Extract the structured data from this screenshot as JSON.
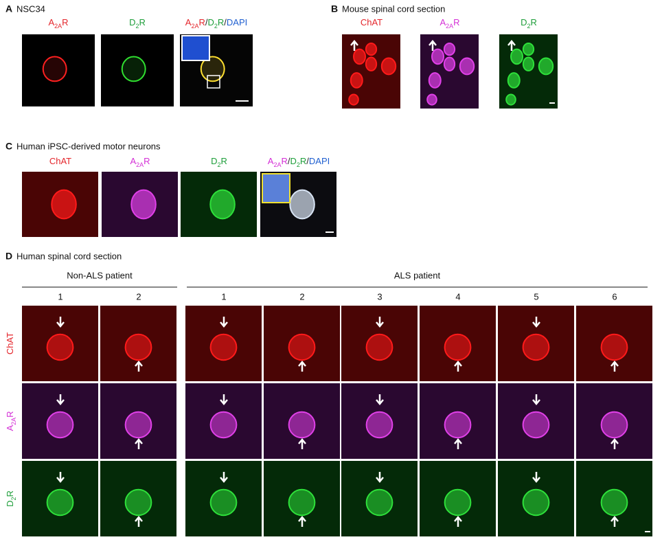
{
  "panels": [
    {
      "letter": "A",
      "title": "NSC34",
      "labels": [
        [
          {
            "text": "A",
            "color": "#e4252b"
          },
          {
            "text": "2A",
            "color": "#e4252b",
            "sub": true
          },
          {
            "text": "R",
            "color": "#e4252b"
          }
        ],
        [
          {
            "text": "D",
            "color": "#1e9e3a"
          },
          {
            "text": "2",
            "color": "#1e9e3a",
            "sub": true
          },
          {
            "text": "R",
            "color": "#1e9e3a"
          }
        ],
        [
          {
            "text": "A",
            "color": "#e4252b"
          },
          {
            "text": "2A",
            "color": "#e4252b",
            "sub": true
          },
          {
            "text": "R",
            "color": "#e4252b"
          },
          {
            "text": "/",
            "color": "#222222"
          },
          {
            "text": "D",
            "color": "#1e9e3a"
          },
          {
            "text": "2",
            "color": "#1e9e3a",
            "sub": true
          },
          {
            "text": "R",
            "color": "#1e9e3a"
          },
          {
            "text": "/",
            "color": "#222222"
          },
          {
            "text": "DAPI",
            "color": "#1f5fd0"
          }
        ]
      ]
    },
    {
      "letter": "B",
      "title": "Mouse spinal cord section",
      "labels": [
        [
          {
            "text": "ChAT",
            "color": "#e4252b"
          }
        ],
        [
          {
            "text": "A",
            "color": "#d42fd6"
          },
          {
            "text": "2A",
            "color": "#d42fd6",
            "sub": true
          },
          {
            "text": "R",
            "color": "#d42fd6"
          }
        ],
        [
          {
            "text": "D",
            "color": "#1e9e3a"
          },
          {
            "text": "2",
            "color": "#1e9e3a",
            "sub": true
          },
          {
            "text": "R",
            "color": "#1e9e3a"
          }
        ]
      ]
    },
    {
      "letter": "C",
      "title": "Human iPSC-derived motor neurons",
      "labels": [
        [
          {
            "text": "ChAT",
            "color": "#e4252b"
          }
        ],
        [
          {
            "text": "A",
            "color": "#d42fd6"
          },
          {
            "text": "2A",
            "color": "#d42fd6",
            "sub": true
          },
          {
            "text": "R",
            "color": "#d42fd6"
          }
        ],
        [
          {
            "text": "D",
            "color": "#1e9e3a"
          },
          {
            "text": "2",
            "color": "#1e9e3a",
            "sub": true
          },
          {
            "text": "R",
            "color": "#1e9e3a"
          }
        ],
        [
          {
            "text": "A",
            "color": "#d42fd6"
          },
          {
            "text": "2A",
            "color": "#d42fd6",
            "sub": true
          },
          {
            "text": "R",
            "color": "#d42fd6"
          },
          {
            "text": "/",
            "color": "#222222"
          },
          {
            "text": "D",
            "color": "#1e9e3a"
          },
          {
            "text": "2",
            "color": "#1e9e3a",
            "sub": true
          },
          {
            "text": "R",
            "color": "#1e9e3a"
          },
          {
            "text": "/",
            "color": "#222222"
          },
          {
            "text": "DAPI",
            "color": "#1f5fd0"
          }
        ]
      ]
    },
    {
      "letter": "D",
      "title": "Human spinal cord section",
      "groups": [
        {
          "name": "Non-ALS patient",
          "columns": [
            "1",
            "2"
          ]
        },
        {
          "name": "ALS patient",
          "columns": [
            "1",
            "2",
            "3",
            "4",
            "5",
            "6"
          ]
        }
      ],
      "rows": [
        [
          {
            "text": "ChAT",
            "color": "#e4252b"
          }
        ],
        [
          {
            "text": "A",
            "color": "#d42fd6"
          },
          {
            "text": "2A",
            "color": "#d42fd6",
            "sub": true
          },
          {
            "text": "R",
            "color": "#d42fd6"
          }
        ],
        [
          {
            "text": "D",
            "color": "#1e9e3a"
          },
          {
            "text": "2",
            "color": "#1e9e3a",
            "sub": true
          },
          {
            "text": "R",
            "color": "#1e9e3a"
          }
        ]
      ]
    }
  ]
}
